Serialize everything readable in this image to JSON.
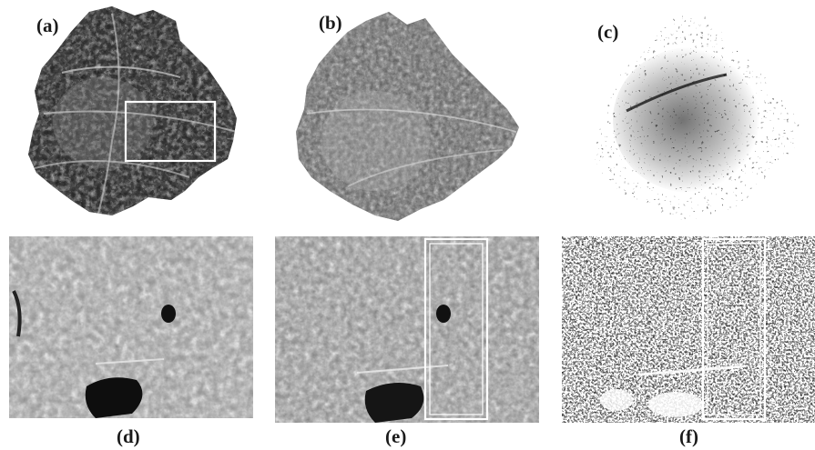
{
  "figure": {
    "panels": [
      {
        "id": "a",
        "label": "(a)",
        "kind": "city-map",
        "tone": "dark",
        "annotation": "white rectangle marking zoom region"
      },
      {
        "id": "b",
        "label": "(b)",
        "kind": "city-map",
        "tone": "mid-gray"
      },
      {
        "id": "c",
        "label": "(c)",
        "kind": "city-map",
        "tone": "binary"
      },
      {
        "id": "d",
        "label": "(d)",
        "kind": "zoom-crop",
        "tone": "gray"
      },
      {
        "id": "e",
        "label": "(e)",
        "kind": "zoom-crop",
        "tone": "gray",
        "annotation": "white double rectangle (vertical strip)"
      },
      {
        "id": "f",
        "label": "(f)",
        "kind": "zoom-crop",
        "tone": "binary",
        "annotation": "white double rectangle (vertical strip)"
      }
    ],
    "colors": {
      "background": "#ffffff",
      "label": "#1a1a1a",
      "annotation": "#ffffff"
    }
  }
}
